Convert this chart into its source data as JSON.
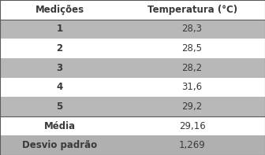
{
  "header": [
    "Medições",
    "Temperatura (°C)"
  ],
  "rows": [
    [
      "1",
      "28,3"
    ],
    [
      "2",
      "28,5"
    ],
    [
      "3",
      "28,2"
    ],
    [
      "4",
      "31,6"
    ],
    [
      "5",
      "29,2"
    ]
  ],
  "footer_rows": [
    [
      "Média",
      "29,16"
    ],
    [
      "Desvio padrão",
      "1,269"
    ]
  ],
  "bg_shaded": "#b8b8b8",
  "bg_white": "#ffffff",
  "bg_footer_shaded": "#b0b0b0",
  "header_bg": "#ffffff",
  "text_color": "#3a3a3a",
  "border_color": "#5a5a5a",
  "col_split": 0.45
}
